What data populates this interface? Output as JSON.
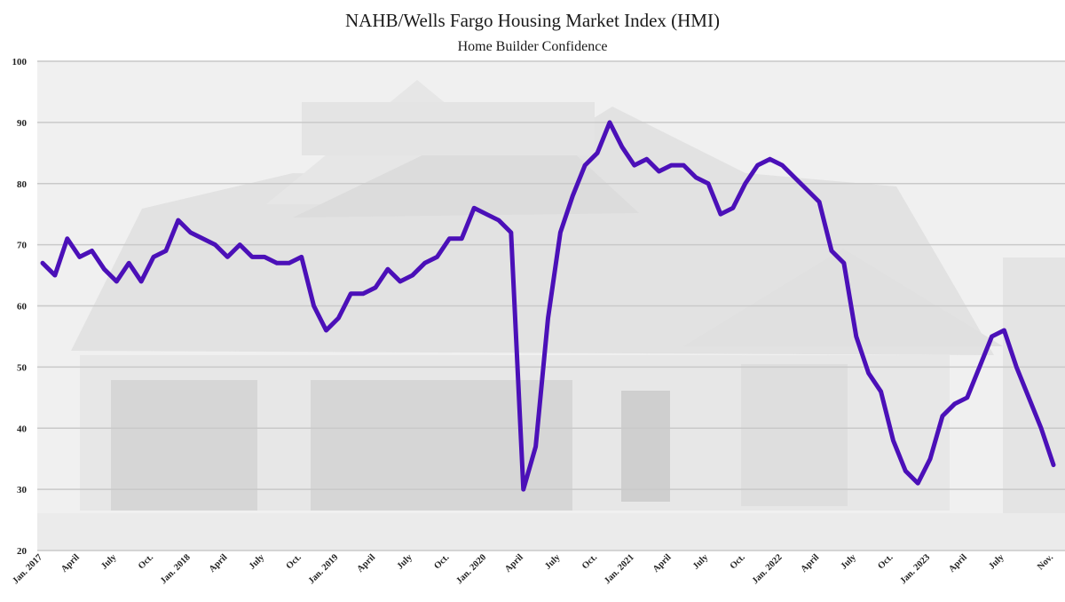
{
  "chart_data": {
    "type": "line",
    "title": "NAHB/Wells Fargo Housing Market Index (HMI)",
    "subtitle": "Home Builder Confidence",
    "xlabel": "",
    "ylabel": "",
    "ylim": [
      20,
      100
    ],
    "yticks": [
      20,
      30,
      40,
      50,
      60,
      70,
      80,
      90,
      100
    ],
    "grid": true,
    "background": "faded photo of a two-story house with garages",
    "x_tick_labels": [
      {
        "month": "2017-01",
        "label": "Jan. 2017"
      },
      {
        "month": "2017-04",
        "label": "April"
      },
      {
        "month": "2017-07",
        "label": "July"
      },
      {
        "month": "2017-10",
        "label": "Oct."
      },
      {
        "month": "2018-01",
        "label": "Jan. 2018"
      },
      {
        "month": "2018-04",
        "label": "April"
      },
      {
        "month": "2018-07",
        "label": "July"
      },
      {
        "month": "2018-10",
        "label": "Oct."
      },
      {
        "month": "2019-01",
        "label": "Jan. 2019"
      },
      {
        "month": "2019-04",
        "label": "April"
      },
      {
        "month": "2019-07",
        "label": "July"
      },
      {
        "month": "2019-10",
        "label": "Oct."
      },
      {
        "month": "2020-01",
        "label": "Jan. 2020"
      },
      {
        "month": "2020-04",
        "label": "April"
      },
      {
        "month": "2020-07",
        "label": "July"
      },
      {
        "month": "2020-10",
        "label": "Oct."
      },
      {
        "month": "2021-01",
        "label": "Jan. 2021"
      },
      {
        "month": "2021-04",
        "label": "April"
      },
      {
        "month": "2021-07",
        "label": "July"
      },
      {
        "month": "2021-10",
        "label": "Oct."
      },
      {
        "month": "2022-01",
        "label": "Jan. 2022"
      },
      {
        "month": "2022-04",
        "label": "April"
      },
      {
        "month": "2022-07",
        "label": "July"
      },
      {
        "month": "2022-10",
        "label": "Oct."
      },
      {
        "month": "2023-01",
        "label": "Jan. 2023"
      },
      {
        "month": "2023-04",
        "label": "April"
      },
      {
        "month": "2023-07",
        "label": "July"
      },
      {
        "month": "2023-11",
        "label": "Nov."
      }
    ],
    "series": [
      {
        "color": "#4b10b8",
        "x": [
          "2017-01",
          "2017-02",
          "2017-03",
          "2017-04",
          "2017-05",
          "2017-06",
          "2017-07",
          "2017-08",
          "2017-09",
          "2017-10",
          "2017-11",
          "2017-12",
          "2018-01",
          "2018-02",
          "2018-03",
          "2018-04",
          "2018-05",
          "2018-06",
          "2018-07",
          "2018-08",
          "2018-09",
          "2018-10",
          "2018-11",
          "2018-12",
          "2019-01",
          "2019-02",
          "2019-03",
          "2019-04",
          "2019-05",
          "2019-06",
          "2019-07",
          "2019-08",
          "2019-09",
          "2019-10",
          "2019-11",
          "2019-12",
          "2020-01",
          "2020-02",
          "2020-03",
          "2020-04",
          "2020-05",
          "2020-06",
          "2020-07",
          "2020-08",
          "2020-09",
          "2020-10",
          "2020-11",
          "2020-12",
          "2021-01",
          "2021-02",
          "2021-03",
          "2021-04",
          "2021-05",
          "2021-06",
          "2021-07",
          "2021-08",
          "2021-09",
          "2021-10",
          "2021-11",
          "2021-12",
          "2022-01",
          "2022-02",
          "2022-03",
          "2022-04",
          "2022-05",
          "2022-06",
          "2022-07",
          "2022-08",
          "2022-09",
          "2022-10",
          "2022-11",
          "2022-12",
          "2023-01",
          "2023-02",
          "2023-03",
          "2023-04",
          "2023-05",
          "2023-06",
          "2023-07",
          "2023-08",
          "2023-09",
          "2023-10",
          "2023-11"
        ],
        "values": [
          67,
          65,
          71,
          68,
          69,
          66,
          64,
          67,
          64,
          68,
          69,
          74,
          72,
          71,
          70,
          68,
          70,
          68,
          68,
          67,
          67,
          68,
          60,
          56,
          58,
          62,
          62,
          63,
          66,
          64,
          65,
          67,
          68,
          71,
          71,
          76,
          75,
          74,
          72,
          30,
          37,
          58,
          72,
          78,
          83,
          85,
          90,
          86,
          83,
          84,
          82,
          83,
          83,
          81,
          80,
          75,
          76,
          80,
          83,
          84,
          83,
          81,
          79,
          77,
          69,
          67,
          55,
          49,
          46,
          38,
          33,
          31,
          35,
          42,
          44,
          45,
          50,
          55,
          56,
          50,
          45,
          40,
          34
        ]
      }
    ]
  }
}
